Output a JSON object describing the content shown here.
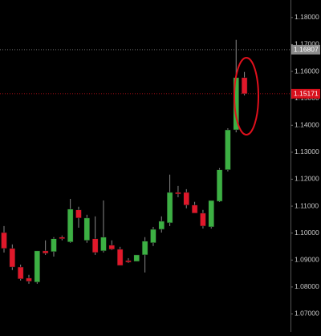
{
  "chart_data": {
    "type": "candlestick",
    "up_color": "#3cb043",
    "down_color": "#e0182a",
    "open": [
      1.1002,
      1.0943,
      1.0874,
      1.0833,
      1.0818,
      1.0934,
      1.0931,
      1.0985,
      1.0967,
      1.1086,
      1.0973,
      1.0979,
      1.0934,
      1.0955,
      1.094,
      1.0898,
      1.0895,
      1.0919,
      1.0964,
      1.1014,
      1.1038,
      1.1151,
      1.1151,
      1.1104,
      1.1074,
      1.1023,
      1.1118,
      1.1235,
      1.1383,
      1.1577
    ],
    "high": [
      1.1026,
      1.0958,
      1.0883,
      1.0845,
      1.0934,
      1.0973,
      1.0985,
      1.0991,
      1.1127,
      1.1098,
      1.1068,
      1.1062,
      1.1121,
      1.0973,
      1.0949,
      1.0907,
      1.0907,
      1.0985,
      1.1023,
      1.1062,
      1.1217,
      1.1175,
      1.1163,
      1.1116,
      1.1086,
      1.1121,
      1.1241,
      1.1389,
      1.1717,
      1.1598
    ],
    "low": [
      1.0928,
      1.0863,
      1.0824,
      1.0812,
      1.0812,
      1.0919,
      1.0913,
      1.0973,
      1.0964,
      1.102,
      1.0964,
      1.0919,
      1.0928,
      1.0937,
      1.088,
      1.0889,
      1.0895,
      1.0854,
      1.0952,
      1.1002,
      1.1026,
      1.1133,
      1.1092,
      1.108,
      1.1017,
      1.1017,
      1.1115,
      1.1229,
      1.1374,
      1.1511
    ],
    "close": [
      1.0943,
      1.0874,
      1.083,
      1.0821,
      1.0934,
      1.0925,
      1.0979,
      1.0979,
      1.1089,
      1.1056,
      1.1056,
      1.0928,
      1.0985,
      1.094,
      1.088,
      1.0892,
      1.0919,
      1.097,
      1.1014,
      1.1044,
      1.1151,
      1.1145,
      1.1104,
      1.1074,
      1.1026,
      1.1121,
      1.1235,
      1.1383,
      1.1577,
      1.1517
    ],
    "ylim": [
      1.0633,
      1.1865
    ],
    "yticks": [
      {
        "value": 1.07,
        "label": "1.07000"
      },
      {
        "value": 1.08,
        "label": "1.08000"
      },
      {
        "value": 1.09,
        "label": "1.09000"
      },
      {
        "value": 1.1,
        "label": "1.10000"
      },
      {
        "value": 1.11,
        "label": "1.11000"
      },
      {
        "value": 1.12,
        "label": "1.12000"
      },
      {
        "value": 1.13,
        "label": "1.13000"
      },
      {
        "value": 1.14,
        "label": "1.14000"
      },
      {
        "value": 1.15,
        "label": "1.15000"
      },
      {
        "value": 1.16,
        "label": "1.16000"
      },
      {
        "value": 1.17,
        "label": "1.17000"
      },
      {
        "value": 1.18,
        "label": "1.18000"
      }
    ],
    "price_lines": [
      {
        "value": 1.16807,
        "color": "#8a8a8a"
      },
      {
        "value": 1.15171,
        "color": "#d8101c"
      }
    ]
  }
}
